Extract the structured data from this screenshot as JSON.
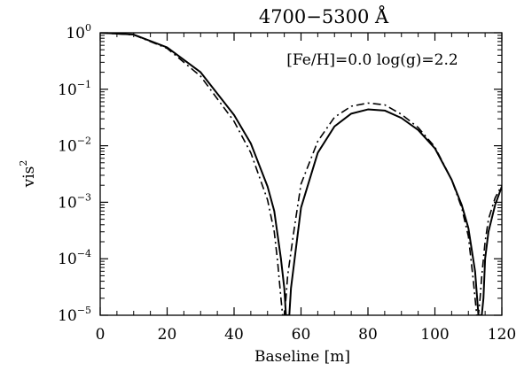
{
  "chart_data": {
    "type": "line",
    "title": "4700−5300 Å",
    "annotation": "[Fe/H]=0.0  log(g)=2.2",
    "xlabel": "Baseline [m]",
    "ylabel": "vis²",
    "xlim": [
      0,
      120
    ],
    "ylim": [
      1e-05,
      1.0
    ],
    "yscale": "log",
    "grid": false,
    "x_ticks": [
      0,
      20,
      40,
      60,
      80,
      100,
      120
    ],
    "y_tick_exponents": [
      0,
      -1,
      -2,
      -3,
      -4,
      -5
    ],
    "series": [
      {
        "style": "solid",
        "x": [
          0,
          10,
          20,
          30,
          40,
          45,
          50,
          52,
          54,
          55,
          55.5,
          56,
          56.5,
          57,
          58,
          60,
          65,
          70,
          75,
          80,
          85,
          90,
          95,
          100,
          105,
          108,
          110,
          112,
          113,
          113.5,
          114,
          114.5,
          115,
          116,
          118,
          120
        ],
        "y": [
          1.0,
          0.93,
          0.55,
          0.2,
          0.035,
          0.011,
          0.0019,
          0.0007,
          0.0001,
          3e-05,
          1e-05,
          1e-05,
          1e-05,
          3e-05,
          9e-05,
          0.0008,
          0.0075,
          0.022,
          0.037,
          0.044,
          0.042,
          0.031,
          0.019,
          0.009,
          0.0025,
          0.0009,
          0.00035,
          6e-05,
          1e-05,
          1e-05,
          1e-05,
          2e-05,
          0.0001,
          0.0003,
          0.0009,
          0.0019
        ]
      },
      {
        "style": "dash-dot",
        "x": [
          0,
          10,
          20,
          30,
          40,
          45,
          50,
          52,
          53,
          54,
          54.5,
          55,
          55.5,
          56,
          58,
          60,
          65,
          70,
          75,
          80,
          85,
          90,
          95,
          100,
          105,
          108,
          110,
          111.5,
          112.5,
          113,
          113.5,
          114,
          115,
          116,
          118,
          120
        ],
        "y": [
          1.0,
          0.92,
          0.53,
          0.17,
          0.027,
          0.0075,
          0.0011,
          0.0003,
          9e-05,
          2e-05,
          1e-05,
          1e-05,
          2e-05,
          5e-05,
          0.00035,
          0.0021,
          0.012,
          0.032,
          0.05,
          0.057,
          0.053,
          0.036,
          0.021,
          0.0095,
          0.0025,
          0.0008,
          0.00025,
          4e-05,
          1e-05,
          1e-05,
          2e-05,
          5e-05,
          0.0002,
          0.0005,
          0.0012,
          0.002
        ]
      },
      {
        "style": "dotted",
        "x": [
          0,
          10,
          20,
          30,
          40,
          45,
          50,
          52,
          54,
          55,
          55.5,
          56,
          56.5,
          57,
          58,
          60,
          65,
          70,
          75,
          80,
          85,
          90,
          95,
          100,
          105,
          108,
          110,
          112,
          113,
          113.5,
          114,
          114.5,
          115,
          116,
          118,
          120
        ],
        "y": [
          1.0,
          0.93,
          0.55,
          0.2,
          0.035,
          0.011,
          0.0019,
          0.0007,
          0.0001,
          3e-05,
          1e-05,
          1e-05,
          1e-05,
          3e-05,
          9e-05,
          0.0008,
          0.0075,
          0.022,
          0.037,
          0.044,
          0.042,
          0.031,
          0.019,
          0.009,
          0.0025,
          0.0009,
          0.00035,
          6e-05,
          1e-05,
          1e-05,
          1e-05,
          2e-05,
          0.0001,
          0.0003,
          0.0009,
          0.0019
        ]
      }
    ]
  }
}
